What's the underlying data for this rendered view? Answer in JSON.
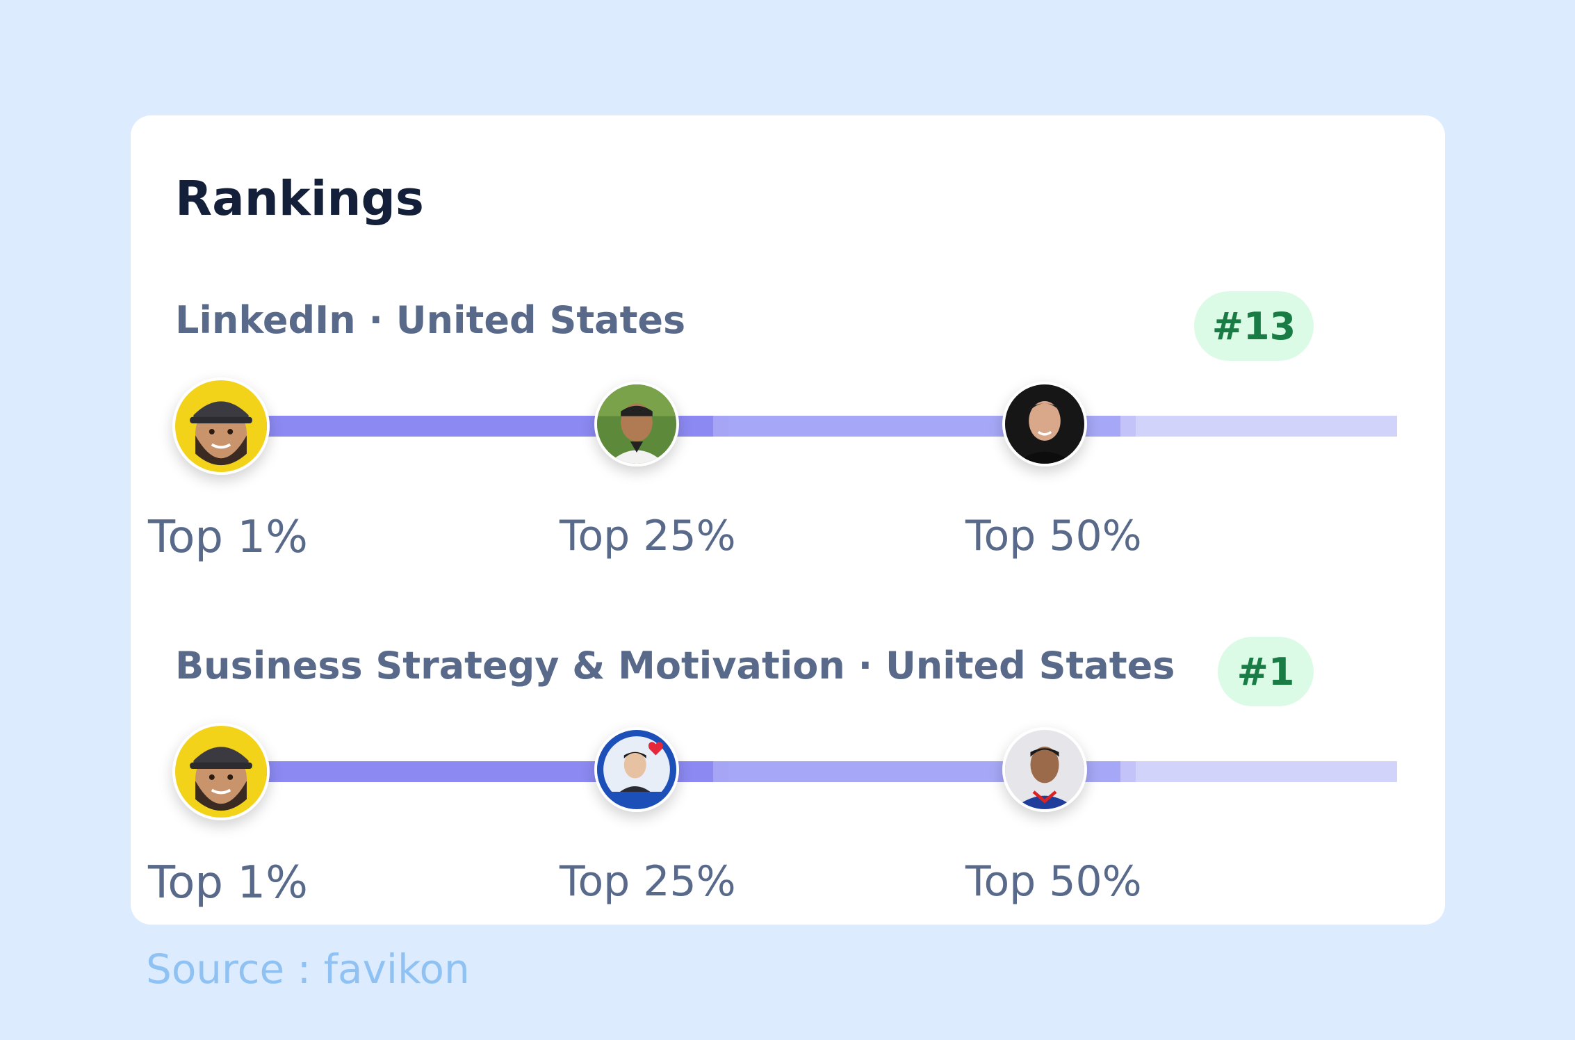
{
  "card": {
    "title": "Rankings"
  },
  "rankings": [
    {
      "label": "LinkedIn · United States",
      "rank": "#13",
      "tiers": [
        "Top 1%",
        "Top 25%",
        "Top 50%"
      ]
    },
    {
      "label": "Business Strategy & Motivation · United States",
      "rank": "#1",
      "tiers": [
        "Top 1%",
        "Top 25%",
        "Top 50%"
      ]
    }
  ],
  "source": "Source : favikon",
  "colors": {
    "background": "#dcebfd",
    "card": "#ffffff",
    "track_strong": "#8c89f2",
    "track_mid": "#a6a7f6",
    "track_light": "#d2d3fb",
    "badge_bg": "#dcfbe6",
    "badge_text": "#1a7c45"
  }
}
